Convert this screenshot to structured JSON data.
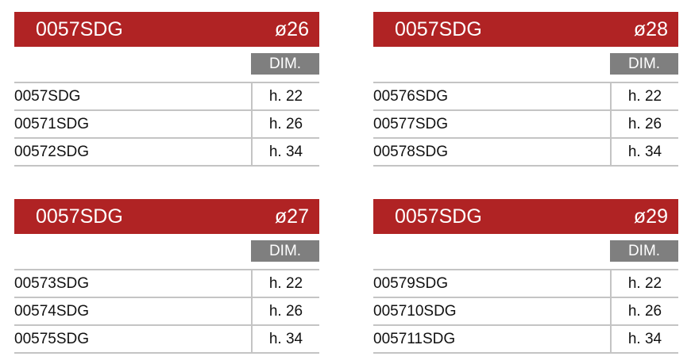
{
  "cards": [
    {
      "title": "0057SDG",
      "diameter": "ø26",
      "dim_label": "DIM.",
      "rows": [
        {
          "code": "0057SDG",
          "dim": "h. 22"
        },
        {
          "code": "00571SDG",
          "dim": "h. 26"
        },
        {
          "code": "00572SDG",
          "dim": "h. 34"
        }
      ]
    },
    {
      "title": "0057SDG",
      "diameter": "ø28",
      "dim_label": "DIM.",
      "rows": [
        {
          "code": "00576SDG",
          "dim": "h. 22"
        },
        {
          "code": "00577SDG",
          "dim": "h. 26"
        },
        {
          "code": "00578SDG",
          "dim": "h. 34"
        }
      ]
    },
    {
      "title": "0057SDG",
      "diameter": "ø27",
      "dim_label": "DIM.",
      "rows": [
        {
          "code": "00573SDG",
          "dim": "h. 22"
        },
        {
          "code": "00574SDG",
          "dim": "h. 26"
        },
        {
          "code": "00575SDG",
          "dim": "h. 34"
        }
      ]
    },
    {
      "title": "0057SDG",
      "diameter": "ø29",
      "dim_label": "DIM.",
      "rows": [
        {
          "code": "00579SDG",
          "dim": "h. 22"
        },
        {
          "code": "005710SDG",
          "dim": "h. 26"
        },
        {
          "code": "005711SDG",
          "dim": "h. 34"
        }
      ]
    }
  ],
  "colors": {
    "header": "#b02324",
    "dim_badge": "#7f7f7f",
    "rule": "#c4c4c4"
  }
}
